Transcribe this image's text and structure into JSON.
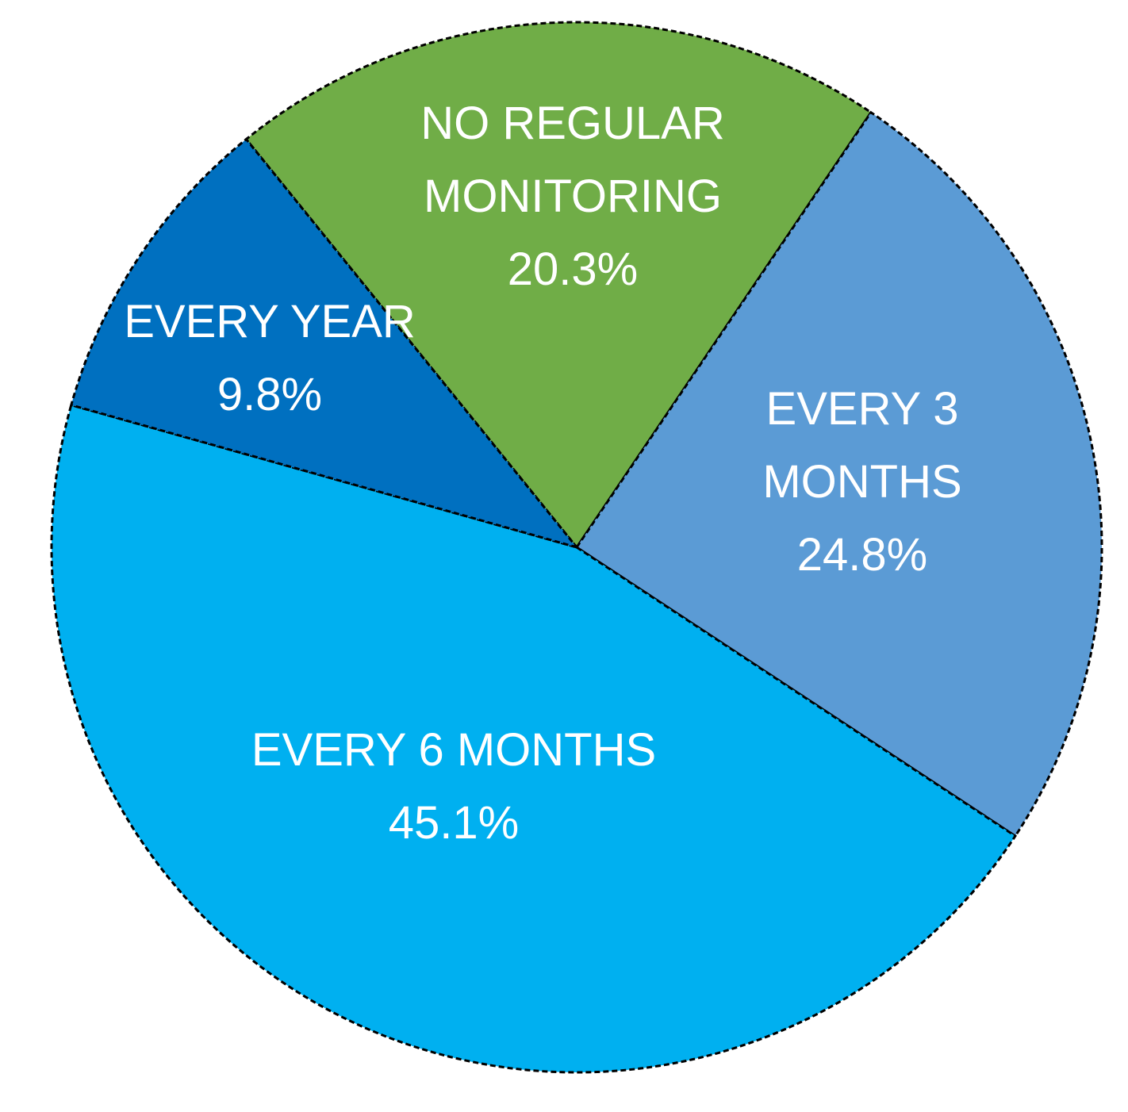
{
  "chart_data": {
    "type": "pie",
    "categories": [
      "NO REGULAR MONITORING",
      "EVERY 3 MONTHS",
      "EVERY 6 MONTHS",
      "EVERY YEAR"
    ],
    "values": [
      20.3,
      24.8,
      45.1,
      9.8
    ],
    "value_labels": [
      "20.3%",
      "24.8%",
      "45.1%",
      "9.8%"
    ],
    "colors": [
      "#70ad47",
      "#5b9bd5",
      "#00b0f0",
      "#0070c0"
    ]
  }
}
